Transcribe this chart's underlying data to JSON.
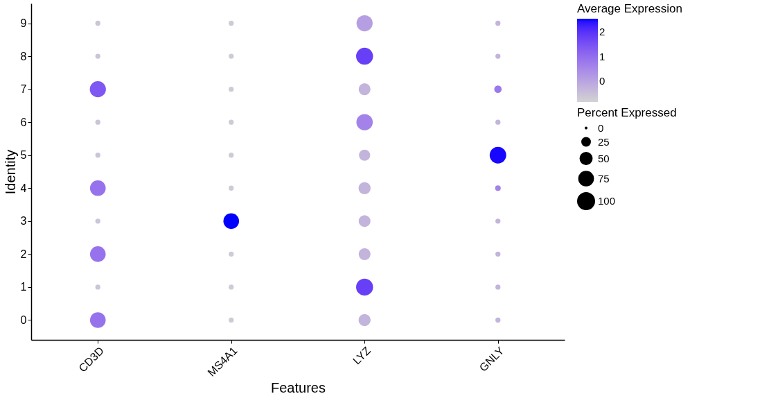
{
  "chart_data": {
    "type": "bubble",
    "xlabel": "Features",
    "ylabel": "Identity",
    "clabel": "Average Expression",
    "legend_title": "Percent Expressed",
    "categories": [
      "CD3D",
      "MS4A1",
      "LYZ",
      "GNLY"
    ],
    "series": [
      {
        "x": [
          "CD3D",
          "CD3D",
          "CD3D",
          "CD3D",
          "CD3D",
          "CD3D",
          "CD3D",
          "CD3D",
          "CD3D",
          "CD3D",
          "MS4A1",
          "MS4A1",
          "MS4A1",
          "MS4A1",
          "MS4A1",
          "MS4A1",
          "MS4A1",
          "MS4A1",
          "MS4A1",
          "MS4A1",
          "LYZ",
          "LYZ",
          "LYZ",
          "LYZ",
          "LYZ",
          "LYZ",
          "LYZ",
          "LYZ",
          "LYZ",
          "LYZ",
          "GNLY",
          "GNLY",
          "GNLY",
          "GNLY",
          "GNLY",
          "GNLY",
          "GNLY",
          "GNLY",
          "GNLY",
          "GNLY"
        ],
        "values": [
          0,
          1,
          2,
          3,
          4,
          5,
          6,
          7,
          8,
          9,
          0,
          1,
          2,
          3,
          4,
          5,
          6,
          7,
          8,
          9,
          0,
          1,
          2,
          3,
          4,
          5,
          6,
          7,
          8,
          9,
          0,
          1,
          2,
          3,
          4,
          5,
          6,
          7,
          8,
          9
        ],
        "sizes": [
          85,
          8,
          85,
          8,
          85,
          8,
          8,
          90,
          8,
          8,
          8,
          8,
          8,
          85,
          8,
          8,
          8,
          8,
          8,
          8,
          50,
          100,
          48,
          48,
          50,
          43,
          92,
          48,
          100,
          90,
          8,
          8,
          8,
          8,
          10,
          95,
          8,
          18,
          8,
          8
        ],
        "cvalues": [
          0.9,
          -0.6,
          0.9,
          -0.6,
          0.9,
          -0.6,
          -0.6,
          1.4,
          -0.6,
          -0.6,
          -0.7,
          -0.7,
          -0.7,
          2.55,
          -0.7,
          -0.7,
          -0.7,
          -0.7,
          -0.7,
          -0.7,
          -0.3,
          1.8,
          -0.3,
          -0.3,
          -0.3,
          -0.3,
          0.6,
          -0.3,
          1.8,
          0.1,
          -0.3,
          -0.3,
          -0.3,
          -0.3,
          0.6,
          2.5,
          -0.3,
          0.8,
          -0.3,
          -0.3
        ]
      }
    ],
    "ylim": [
      -0.6,
      9.6
    ],
    "yticks": [
      0,
      1,
      2,
      3,
      4,
      5,
      6,
      7,
      8,
      9
    ],
    "clim": [
      -0.85,
      2.55
    ],
    "cticks": [
      0,
      1,
      2
    ],
    "colors": [
      "#d3d3d3",
      "#0000ff"
    ],
    "size_legend": [
      0,
      25,
      50,
      75,
      100
    ],
    "grid": false
  }
}
